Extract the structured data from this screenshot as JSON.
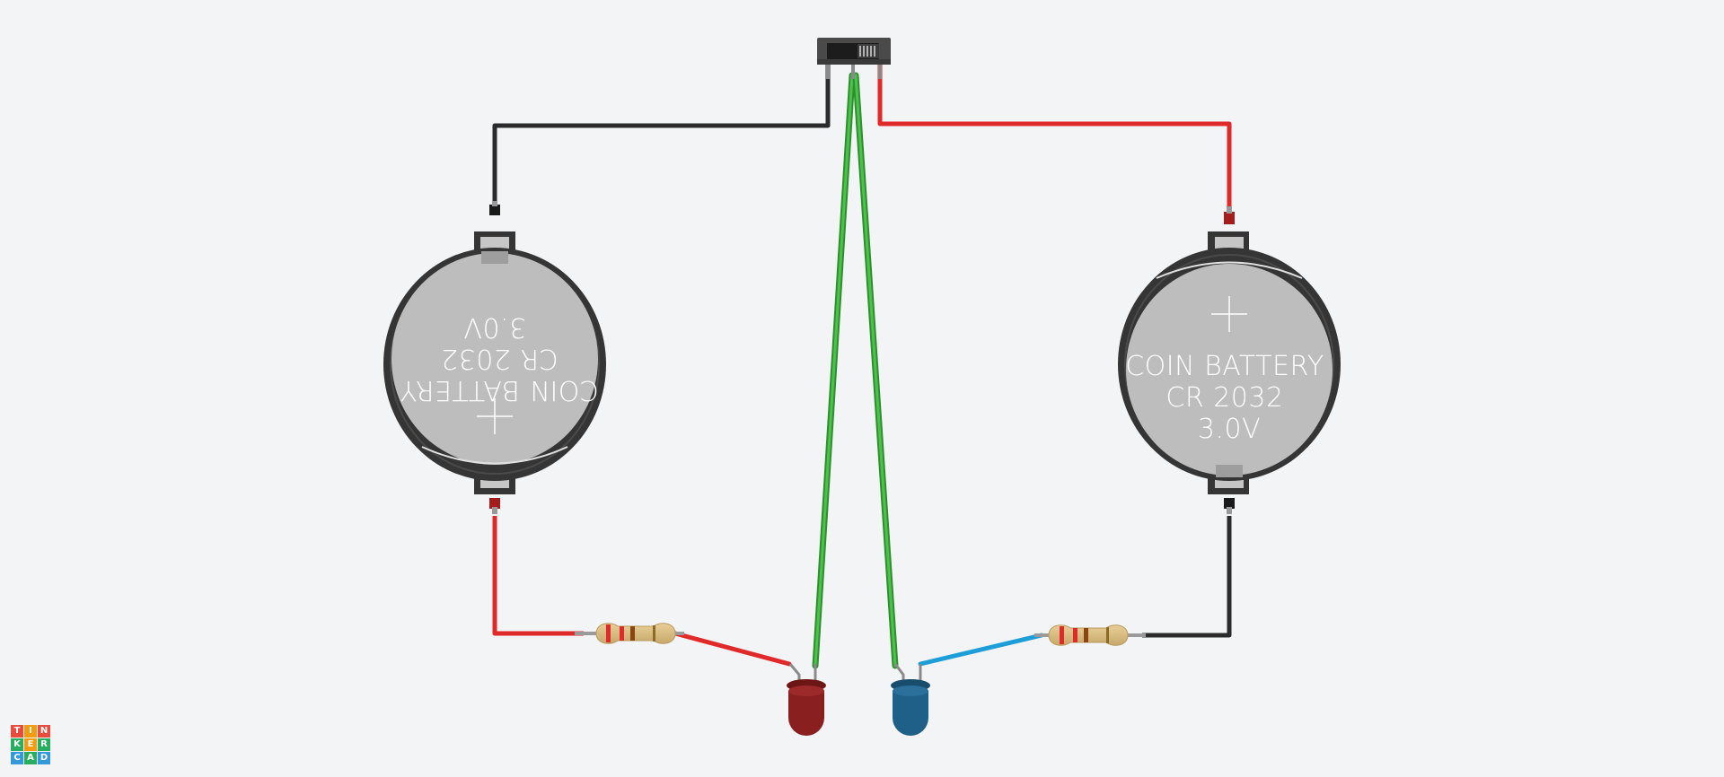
{
  "app": {
    "name": "Tinkercad"
  },
  "logo": {
    "letters": [
      "T",
      "I",
      "N",
      "K",
      "E",
      "R",
      "C",
      "A",
      "D"
    ],
    "colors": [
      "#e74c3c",
      "#f39c12",
      "#e74c3c",
      "#27ae60",
      "#f39c12",
      "#27ae60",
      "#3498db",
      "#27ae60",
      "#3498db"
    ]
  },
  "components": {
    "battery_left": {
      "line1": "COIN BATTERY",
      "line2": "CR 2032",
      "line3": "3.0V",
      "orientation": "rotated-180"
    },
    "battery_right": {
      "line1": "COIN BATTERY",
      "line2": "CR 2032",
      "line3": "3.0V",
      "orientation": "upright"
    },
    "switch": {
      "type": "slide-switch"
    },
    "resistor_left": {
      "type": "resistor"
    },
    "resistor_right": {
      "type": "resistor"
    },
    "led_left": {
      "color": "#8a1f1f"
    },
    "led_right": {
      "color": "#1e6088"
    }
  },
  "wire_colors": {
    "black": "#2b2b2b",
    "red": "#e02a2a",
    "green": "#3aa83a",
    "blue": "#1e9ed8"
  }
}
